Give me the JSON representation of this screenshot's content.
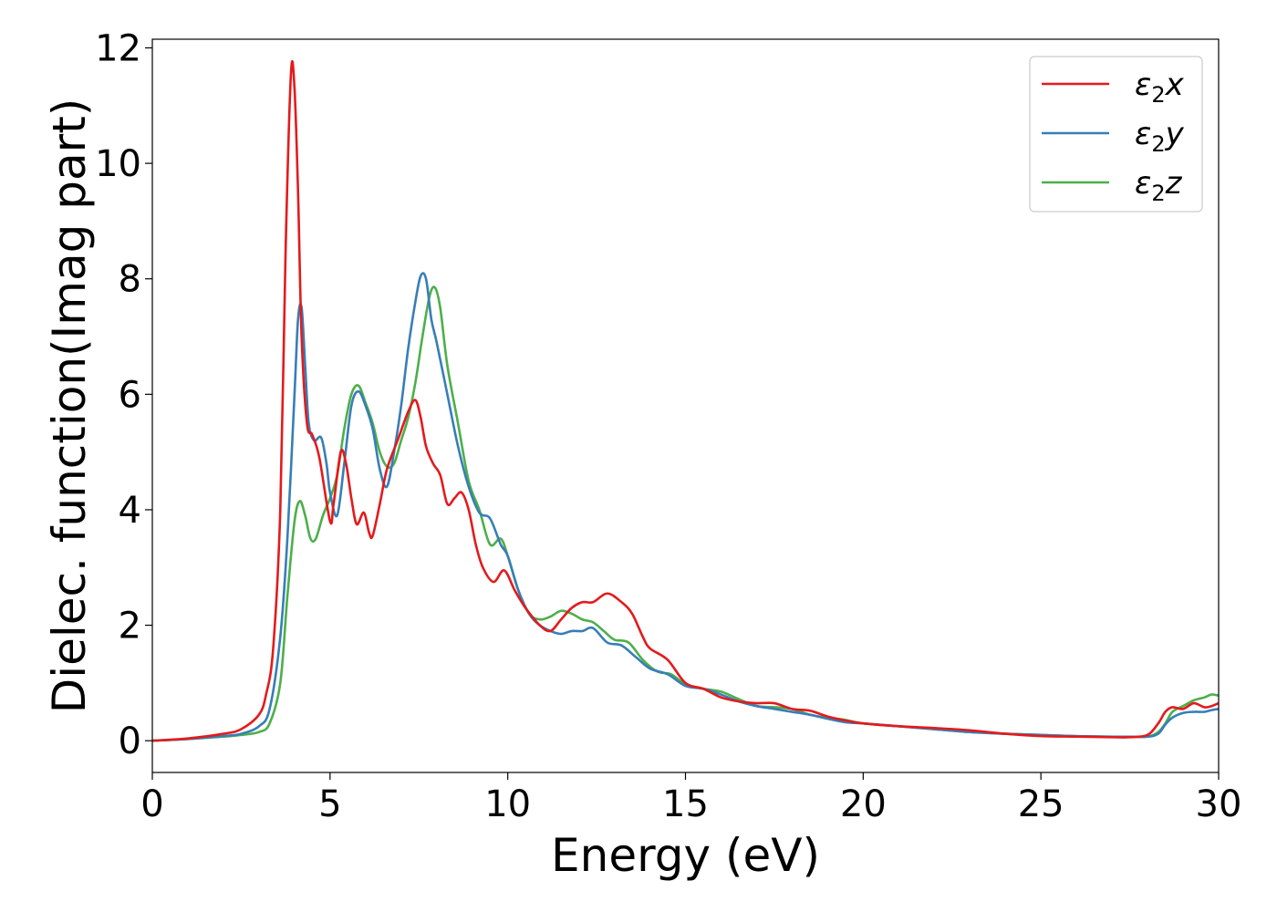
{
  "chart_data": {
    "type": "line",
    "title": "",
    "xlabel": "Energy (eV)",
    "ylabel": "Dielec. function(Imag part)",
    "xlim": [
      0,
      30
    ],
    "ylim": [
      -0.55,
      12.15
    ],
    "xticks": [
      0,
      5,
      10,
      15,
      20,
      25,
      30
    ],
    "yticks": [
      0,
      2,
      4,
      6,
      8,
      10,
      12
    ],
    "grid": false,
    "legend_position": "top-right",
    "series": [
      {
        "name": "ε₂x",
        "legend_main": "ε",
        "legend_sub": "2",
        "legend_suffix": "x",
        "color": "#e41a1c",
        "x": [
          0,
          1,
          2,
          2.5,
          3,
          3.2,
          3.4,
          3.6,
          3.75,
          3.9,
          4.0,
          4.1,
          4.2,
          4.35,
          4.5,
          4.7,
          5.0,
          5.1,
          5.3,
          5.45,
          5.6,
          5.75,
          5.95,
          6.1,
          6.2,
          6.4,
          6.6,
          6.9,
          7.2,
          7.4,
          7.55,
          7.7,
          7.9,
          8.1,
          8.3,
          8.5,
          8.7,
          8.9,
          9.1,
          9.3,
          9.6,
          9.9,
          10.2,
          10.5,
          10.9,
          11.2,
          11.5,
          11.8,
          12.1,
          12.4,
          12.8,
          13.2,
          13.5,
          13.8,
          14.0,
          14.5,
          15,
          15.5,
          16,
          16.5,
          17,
          17.5,
          18,
          18.5,
          19,
          19.5,
          20,
          21,
          22,
          23,
          24,
          25,
          26,
          27,
          27.5,
          28,
          28.3,
          28.5,
          28.7,
          29,
          29.3,
          29.6,
          29.8,
          30
        ],
        "y": [
          0,
          0.04,
          0.12,
          0.2,
          0.45,
          0.8,
          1.6,
          4.0,
          8.5,
          11.55,
          11.3,
          9.5,
          7.0,
          5.5,
          5.3,
          4.9,
          3.8,
          4.1,
          5.0,
          4.8,
          4.2,
          3.75,
          3.95,
          3.6,
          3.55,
          4.1,
          4.7,
          5.2,
          5.7,
          5.9,
          5.6,
          5.1,
          4.8,
          4.6,
          4.1,
          4.2,
          4.3,
          4.0,
          3.4,
          3.0,
          2.75,
          2.95,
          2.6,
          2.3,
          2.0,
          1.9,
          2.1,
          2.3,
          2.4,
          2.4,
          2.55,
          2.4,
          2.2,
          1.8,
          1.6,
          1.4,
          1.0,
          0.9,
          0.75,
          0.68,
          0.65,
          0.65,
          0.55,
          0.52,
          0.42,
          0.35,
          0.3,
          0.25,
          0.22,
          0.18,
          0.12,
          0.08,
          0.07,
          0.06,
          0.06,
          0.1,
          0.3,
          0.5,
          0.58,
          0.55,
          0.65,
          0.58,
          0.6,
          0.65
        ]
      },
      {
        "name": "ε₂y",
        "legend_main": "ε",
        "legend_sub": "2",
        "legend_suffix": "y",
        "color": "#377eb8",
        "x": [
          0,
          1,
          2,
          2.5,
          3,
          3.3,
          3.6,
          3.8,
          4.0,
          4.1,
          4.2,
          4.3,
          4.4,
          4.55,
          4.75,
          4.9,
          5.0,
          5.2,
          5.4,
          5.6,
          5.8,
          6.0,
          6.2,
          6.4,
          6.6,
          6.8,
          7.0,
          7.2,
          7.4,
          7.55,
          7.7,
          7.85,
          8.0,
          8.3,
          8.6,
          8.9,
          9.2,
          9.5,
          9.8,
          10.0,
          10.3,
          10.6,
          10.9,
          11.2,
          11.5,
          11.8,
          12.1,
          12.4,
          12.8,
          13.2,
          13.6,
          14.0,
          14.5,
          15,
          15.5,
          16,
          16.5,
          17,
          17.5,
          18,
          18.5,
          19,
          19.5,
          20,
          21,
          22,
          23,
          24,
          25,
          26,
          27,
          27.5,
          28,
          28.3,
          28.5,
          28.7,
          29,
          29.3,
          29.6,
          29.8,
          30
        ],
        "y": [
          0,
          0.03,
          0.08,
          0.12,
          0.25,
          0.55,
          1.8,
          3.5,
          6.0,
          7.3,
          7.5,
          6.5,
          5.5,
          5.2,
          5.25,
          4.8,
          4.3,
          3.9,
          4.8,
          5.8,
          6.05,
          5.8,
          5.4,
          4.7,
          4.4,
          5.0,
          5.8,
          6.8,
          7.6,
          8.05,
          8.0,
          7.3,
          6.9,
          6.0,
          5.1,
          4.4,
          3.95,
          3.85,
          3.4,
          3.2,
          2.6,
          2.2,
          2.0,
          1.9,
          1.85,
          1.9,
          1.9,
          1.95,
          1.7,
          1.65,
          1.45,
          1.25,
          1.15,
          0.95,
          0.9,
          0.8,
          0.68,
          0.6,
          0.55,
          0.5,
          0.45,
          0.38,
          0.32,
          0.3,
          0.25,
          0.2,
          0.15,
          0.12,
          0.1,
          0.08,
          0.07,
          0.07,
          0.07,
          0.12,
          0.28,
          0.4,
          0.48,
          0.5,
          0.5,
          0.53,
          0.55
        ]
      },
      {
        "name": "ε₂z",
        "legend_main": "ε",
        "legend_sub": "2",
        "legend_suffix": "z",
        "color": "#4daf4a",
        "x": [
          0,
          1,
          2,
          2.5,
          3,
          3.3,
          3.6,
          3.8,
          4.0,
          4.15,
          4.3,
          4.45,
          4.6,
          4.8,
          5.0,
          5.2,
          5.4,
          5.6,
          5.8,
          6.0,
          6.2,
          6.4,
          6.6,
          6.8,
          7.0,
          7.2,
          7.4,
          7.6,
          7.8,
          7.95,
          8.1,
          8.3,
          8.6,
          8.9,
          9.2,
          9.5,
          9.8,
          10.0,
          10.3,
          10.6,
          10.9,
          11.2,
          11.5,
          11.8,
          12.1,
          12.4,
          12.7,
          13.0,
          13.4,
          13.8,
          14.2,
          14.6,
          15,
          15.5,
          16,
          16.5,
          17,
          17.5,
          18,
          18.5,
          19,
          19.5,
          20,
          21,
          22,
          23,
          24,
          25,
          26,
          27,
          27.5,
          28,
          28.3,
          28.5,
          28.7,
          29,
          29.3,
          29.6,
          29.8,
          30
        ],
        "y": [
          0,
          0.03,
          0.07,
          0.1,
          0.15,
          0.3,
          1.0,
          2.5,
          3.8,
          4.15,
          3.9,
          3.5,
          3.5,
          3.9,
          4.2,
          4.6,
          5.4,
          6.0,
          6.15,
          5.85,
          5.5,
          5.0,
          4.75,
          4.8,
          5.2,
          5.6,
          6.2,
          7.0,
          7.7,
          7.85,
          7.5,
          6.5,
          5.5,
          4.5,
          4.0,
          3.4,
          3.5,
          3.2,
          2.6,
          2.2,
          2.1,
          2.15,
          2.25,
          2.2,
          2.1,
          2.05,
          1.9,
          1.75,
          1.7,
          1.4,
          1.2,
          1.15,
          0.98,
          0.9,
          0.85,
          0.72,
          0.6,
          0.58,
          0.55,
          0.45,
          0.4,
          0.36,
          0.3,
          0.25,
          0.2,
          0.15,
          0.12,
          0.1,
          0.08,
          0.07,
          0.07,
          0.07,
          0.15,
          0.3,
          0.5,
          0.6,
          0.7,
          0.75,
          0.8,
          0.78
        ]
      }
    ]
  }
}
